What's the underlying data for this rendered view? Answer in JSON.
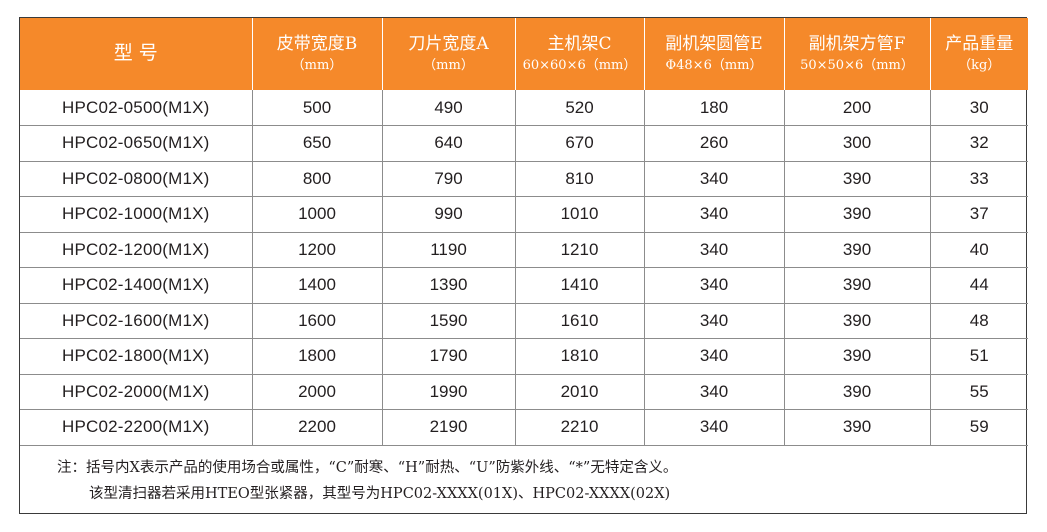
{
  "table": {
    "headers": [
      {
        "main": "型    号",
        "sub": ""
      },
      {
        "main": "皮带宽度B",
        "sub": "（mm）"
      },
      {
        "main": "刀片宽度A",
        "sub": "（mm）"
      },
      {
        "main": "主机架C",
        "sub": "60×60×6（mm）"
      },
      {
        "main": "副机架圆管E",
        "sub": "Φ48×6（mm）"
      },
      {
        "main": "副机架方管F",
        "sub": "50×50×6（mm）"
      },
      {
        "main": "产品重量",
        "sub": "（kg）"
      }
    ],
    "rows": [
      [
        "HPC02-0500(M1X)",
        "500",
        "490",
        "520",
        "180",
        "200",
        "30"
      ],
      [
        "HPC02-0650(M1X)",
        "650",
        "640",
        "670",
        "260",
        "300",
        "32"
      ],
      [
        "HPC02-0800(M1X)",
        "800",
        "790",
        "810",
        "340",
        "390",
        "33"
      ],
      [
        "HPC02-1000(M1X)",
        "1000",
        "990",
        "1010",
        "340",
        "390",
        "37"
      ],
      [
        "HPC02-1200(M1X)",
        "1200",
        "1190",
        "1210",
        "340",
        "390",
        "40"
      ],
      [
        "HPC02-1400(M1X)",
        "1400",
        "1390",
        "1410",
        "340",
        "390",
        "44"
      ],
      [
        "HPC02-1600(M1X)",
        "1600",
        "1590",
        "1610",
        "340",
        "390",
        "48"
      ],
      [
        "HPC02-1800(M1X)",
        "1800",
        "1790",
        "1810",
        "340",
        "390",
        "51"
      ],
      [
        "HPC02-2000(M1X)",
        "2000",
        "1990",
        "2010",
        "340",
        "390",
        "55"
      ],
      [
        "HPC02-2200(M1X)",
        "2200",
        "2190",
        "2210",
        "340",
        "390",
        "59"
      ]
    ]
  },
  "note": {
    "line1": "注：括号内X表示产品的使用场合或属性，“C”耐寒、“H”耐热、“U”防紫外线、“*”无特定含义。",
    "line2": "该型清扫器若采用HTEO型张紧器，其型号为HPC02-XXXX(01X)、HPC02-XXXX(02X)"
  },
  "colors": {
    "header_bg": "#f5892a",
    "header_text": "#ffffff",
    "border": "#3a3a3a",
    "grid": "#8c8c8c",
    "text": "#231f20"
  }
}
